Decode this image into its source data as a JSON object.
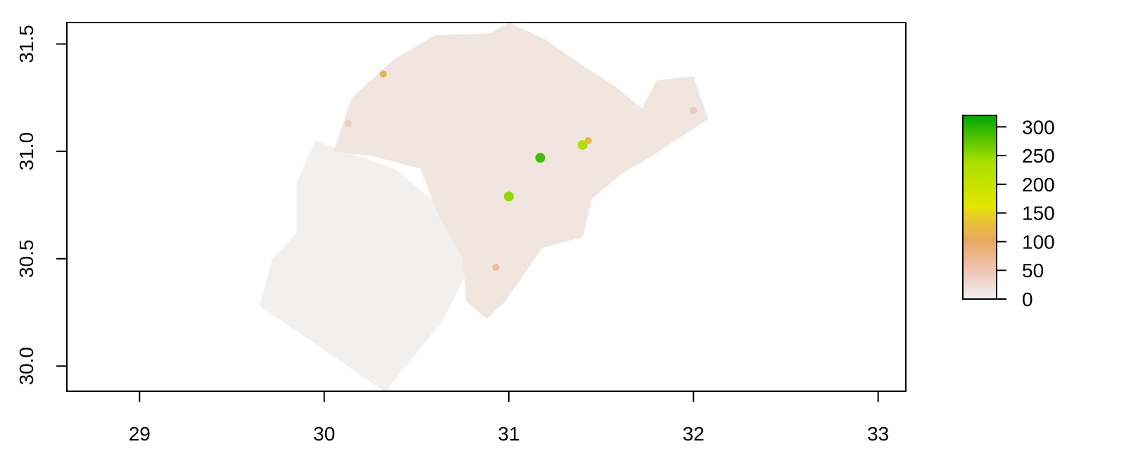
{
  "chart_data": {
    "type": "heatmap",
    "title": "",
    "xlabel": "",
    "ylabel": "",
    "xlim": [
      28.57,
      33.15
    ],
    "ylim": [
      29.88,
      31.6
    ],
    "x_ticks": [
      "29",
      "30",
      "31",
      "32",
      "33"
    ],
    "y_ticks": [
      "30.0",
      "30.5",
      "31.0",
      "31.5"
    ],
    "grid": false,
    "legend": {
      "placement": "right",
      "range": [
        0,
        320
      ],
      "ticks": [
        "0",
        "50",
        "100",
        "150",
        "200",
        "250",
        "300"
      ],
      "colors": [
        "#f2f2f2",
        "#eec3b1",
        "#e8a85f",
        "#e6cc2a",
        "#e6e600",
        "#a6e000",
        "#00a600"
      ]
    },
    "regions": [
      {
        "value": 2,
        "polygon": [
          [
            29.65,
            30.28
          ],
          [
            30.33,
            29.88
          ],
          [
            30.65,
            30.22
          ],
          [
            30.78,
            30.45
          ],
          [
            30.72,
            30.68
          ],
          [
            30.38,
            30.92
          ],
          [
            29.95,
            31.05
          ],
          [
            29.85,
            30.85
          ],
          [
            29.85,
            30.62
          ],
          [
            29.72,
            30.5
          ]
        ]
      },
      {
        "value": 14,
        "polygon": [
          [
            30.05,
            31.0
          ],
          [
            30.15,
            31.25
          ],
          [
            30.38,
            31.43
          ],
          [
            30.6,
            31.54
          ],
          [
            30.9,
            31.55
          ],
          [
            31.0,
            31.6
          ],
          [
            31.2,
            31.52
          ],
          [
            31.4,
            31.4
          ],
          [
            31.58,
            31.3
          ],
          [
            31.72,
            31.2
          ],
          [
            31.8,
            31.33
          ],
          [
            32.0,
            31.35
          ],
          [
            32.08,
            31.15
          ],
          [
            31.9,
            31.05
          ],
          [
            31.78,
            30.98
          ],
          [
            31.62,
            30.9
          ],
          [
            31.45,
            30.78
          ],
          [
            31.4,
            30.6
          ],
          [
            31.18,
            30.55
          ],
          [
            31.1,
            30.45
          ],
          [
            30.98,
            30.3
          ],
          [
            30.88,
            30.22
          ],
          [
            30.77,
            30.3
          ],
          [
            30.75,
            30.5
          ],
          [
            30.62,
            30.7
          ],
          [
            30.52,
            30.92
          ],
          [
            30.25,
            30.98
          ]
        ]
      }
    ],
    "hotspots": [
      {
        "x": 31.0,
        "y": 30.79,
        "value": 250
      },
      {
        "x": 31.17,
        "y": 30.97,
        "value": 290
      },
      {
        "x": 31.4,
        "y": 31.03,
        "value": 230
      },
      {
        "x": 31.43,
        "y": 31.05,
        "value": 120
      },
      {
        "x": 30.93,
        "y": 30.46,
        "value": 60
      },
      {
        "x": 32.0,
        "y": 31.19,
        "value": 45
      },
      {
        "x": 30.13,
        "y": 31.13,
        "value": 40
      },
      {
        "x": 30.32,
        "y": 31.36,
        "value": 110
      }
    ]
  }
}
